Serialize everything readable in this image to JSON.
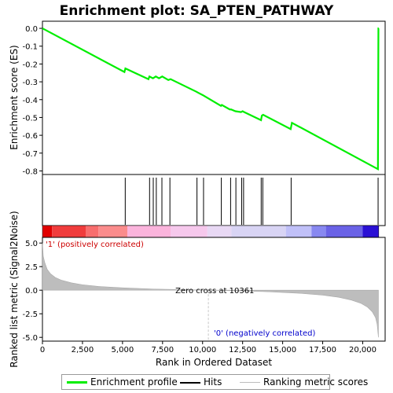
{
  "title": "Enrichment plot: SA_PTEN_PATHWAY",
  "colors": {
    "es_line": "#00ee00",
    "hits": "#000000",
    "metric_fill": "#bdbdbd",
    "positive_label": "#cc0000",
    "negative_label": "#0000cc",
    "zero_line": "#c0c0c0"
  },
  "chart_data": [
    {
      "type": "line",
      "panel": "enrichment",
      "ylabel": "Enrichment score (ES)",
      "xlim": [
        0,
        21400
      ],
      "ylim": [
        -0.82,
        0.04
      ],
      "yticks": [
        "0.0",
        "-0.1",
        "-0.2",
        "-0.3",
        "-0.4",
        "-0.5",
        "-0.6",
        "-0.7",
        "-0.8"
      ],
      "ytick_values": [
        0.0,
        -0.1,
        -0.2,
        -0.3,
        -0.4,
        -0.5,
        -0.6,
        -0.7,
        -0.8
      ],
      "series": [
        {
          "name": "Enrichment profile",
          "x": [
            0,
            5120,
            5180,
            6620,
            6680,
            6900,
            7080,
            7280,
            7480,
            7860,
            8000,
            9600,
            9700,
            10020,
            11150,
            11200,
            11700,
            11780,
            12050,
            12400,
            12500,
            12600,
            13650,
            13700,
            13780,
            15500,
            15580,
            20950,
            20980,
            21000
          ],
          "y": [
            0.0,
            -0.245,
            -0.225,
            -0.285,
            -0.27,
            -0.28,
            -0.27,
            -0.28,
            -0.27,
            -0.29,
            -0.285,
            -0.355,
            -0.36,
            -0.375,
            -0.435,
            -0.43,
            -0.455,
            -0.455,
            -0.465,
            -0.47,
            -0.465,
            -0.47,
            -0.515,
            -0.49,
            -0.485,
            -0.565,
            -0.53,
            -0.79,
            0.0,
            0.0
          ]
        }
      ]
    },
    {
      "type": "scatter",
      "panel": "hits",
      "series_label": "Hits",
      "x": [
        5170,
        6690,
        6920,
        7110,
        7460,
        7960,
        9650,
        10060,
        11170,
        11750,
        12080,
        12440,
        12560,
        13660,
        13760,
        15530,
        20960
      ]
    },
    {
      "type": "area",
      "panel": "ranked_metric",
      "xlabel": "Rank in Ordered Dataset",
      "ylabel": "Ranked list metric (Signal2Noise)",
      "xlim": [
        0,
        21400
      ],
      "ylim": [
        -5.4,
        5.6
      ],
      "xticks": [
        "0",
        "2,500",
        "5,000",
        "7,500",
        "10,000",
        "12,500",
        "15,000",
        "17,500",
        "20,000"
      ],
      "xtick_values": [
        0,
        2500,
        5000,
        7500,
        10000,
        12500,
        15000,
        17500,
        20000
      ],
      "yticks": [
        "5.0",
        "2.5",
        "0.0",
        "-2.5",
        "-5.0"
      ],
      "ytick_values": [
        5.0,
        2.5,
        0.0,
        -2.5,
        -5.0
      ],
      "series_label": "Ranking metric scores",
      "x": [
        0,
        50,
        150,
        300,
        500,
        800,
        1200,
        1800,
        2500,
        3500,
        5000,
        7000,
        9000,
        10361,
        12000,
        14000,
        16000,
        17500,
        18500,
        19300,
        19900,
        20300,
        20600,
        20800,
        20900,
        20980
      ],
      "y": [
        5.0,
        3.6,
        2.9,
        2.2,
        1.75,
        1.35,
        1.05,
        0.78,
        0.58,
        0.4,
        0.25,
        0.12,
        0.05,
        0.0,
        -0.06,
        -0.16,
        -0.32,
        -0.52,
        -0.75,
        -1.05,
        -1.4,
        -1.8,
        -2.3,
        -2.9,
        -3.6,
        -5.0
      ],
      "zero_cross_label": "Zero cross at 10361",
      "positive_label": "'1' (positively correlated)",
      "negative_label": "'0' (negatively correlated)"
    }
  ],
  "legend": {
    "enrichment_profile": "Enrichment profile",
    "hits": "Hits",
    "ranking_metric": "Ranking metric scores"
  }
}
